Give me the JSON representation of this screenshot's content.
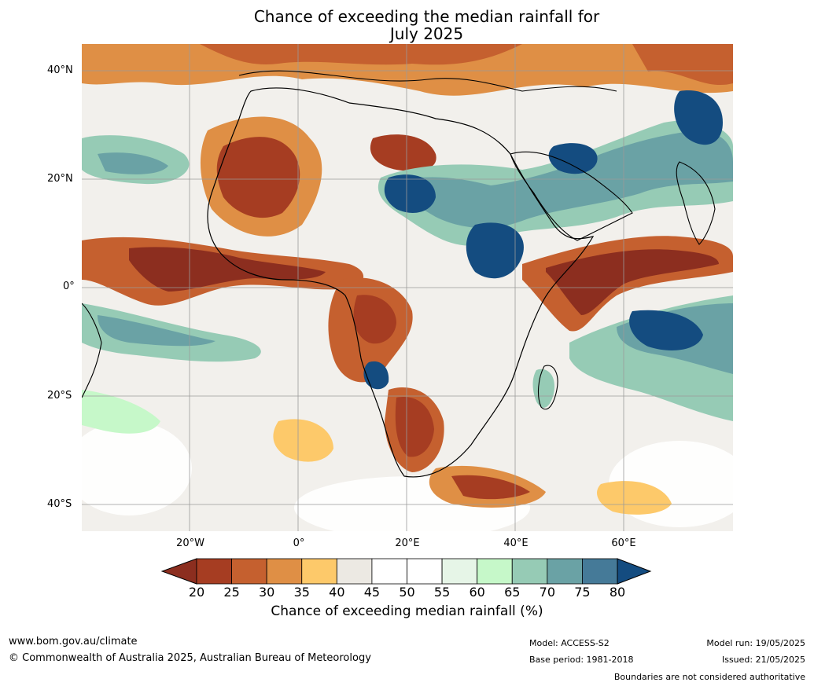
{
  "title": {
    "line1": "Chance of exceeding the median rainfall for",
    "line2": "July 2025"
  },
  "axes": {
    "lat_labels": [
      "40°N",
      "20°N",
      "0°",
      "20°S",
      "40°S"
    ],
    "lon_labels": [
      "20°W",
      "0°",
      "20°E",
      "40°E",
      "60°E"
    ]
  },
  "colorbar": {
    "ticks": [
      "20",
      "25",
      "30",
      "35",
      "40",
      "45",
      "50",
      "55",
      "60",
      "65",
      "70",
      "75",
      "80"
    ],
    "colors": [
      "#a63d22",
      "#c5602f",
      "#df8f45",
      "#fdc96a",
      "#ece9e3",
      "#ffffff",
      "#ffffff",
      "#e6f5e7",
      "#c6f8c9",
      "#96cbb5",
      "#6aa2a5",
      "#457a98"
    ],
    "under_color": "#8c2e1f",
    "over_color": "#144c80",
    "title": "Chance of exceeding median rainfall (%)"
  },
  "footer": {
    "website": "www.bom.gov.au/climate",
    "copyright": "© Commonwealth of Australia 2025, Australian Bureau of Meteorology",
    "model": "Model: ACCESS-S2",
    "base_period": "Base period: 1981-2018",
    "model_run": "Model run: 19/05/2025",
    "issued": "Issued: 21/05/2025",
    "boundaries_note": "Boundaries are not considered authoritative"
  }
}
